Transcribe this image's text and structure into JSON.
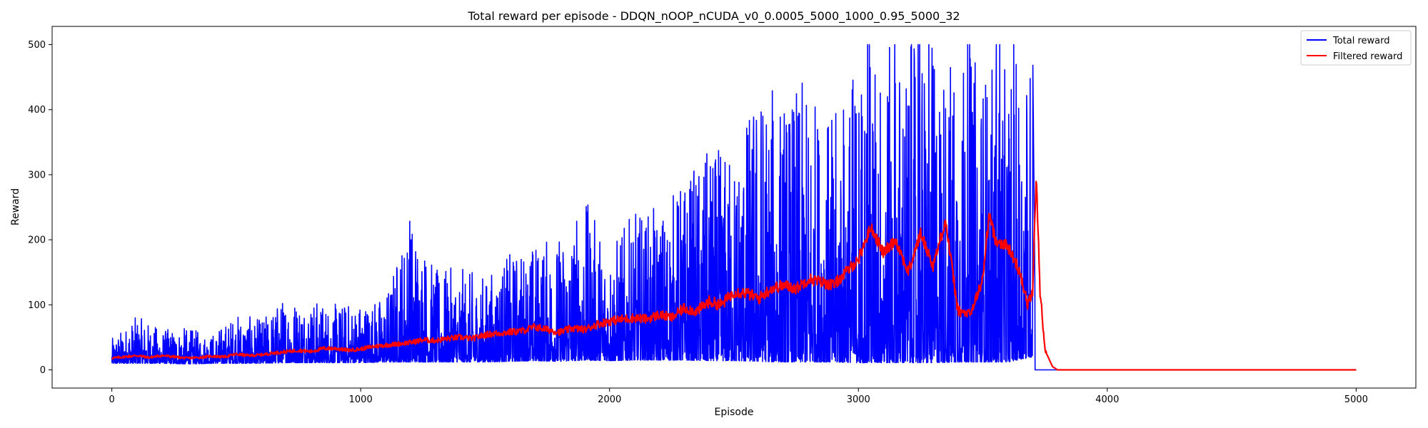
{
  "chart_data": {
    "type": "line",
    "title": "Total reward per episode - DDQN_nOOP_nCUDA_v0_0.0005_5000_1000_0.95_5000_32",
    "xlabel": "Episode",
    "ylabel": "Reward",
    "xlim": [
      -240,
      5240
    ],
    "ylim": [
      -28,
      528
    ],
    "xticks": [
      0,
      1000,
      2000,
      3000,
      4000,
      5000
    ],
    "yticks": [
      0,
      100,
      200,
      300,
      400,
      500
    ],
    "legend_position": "top-right",
    "grid": false,
    "series": [
      {
        "name": "Total reward",
        "color": "#0000ff",
        "style": "noisy raw reward per episode (shown as an envelope of per-bin minimum/maximum)",
        "x": [
          0,
          100,
          200,
          300,
          400,
          500,
          600,
          700,
          800,
          900,
          1000,
          1100,
          1200,
          1300,
          1400,
          1500,
          1600,
          1700,
          1800,
          1900,
          2000,
          2100,
          2200,
          2300,
          2400,
          2500,
          2600,
          2700,
          2800,
          2900,
          3000,
          3100,
          3200,
          3300,
          3400,
          3500,
          3600,
          3700,
          3710,
          3800,
          4000,
          4500,
          5000
        ],
        "min": [
          10,
          10,
          10,
          9,
          10,
          10,
          10,
          11,
          11,
          11,
          11,
          12,
          12,
          12,
          12,
          12,
          13,
          14,
          13,
          15,
          14,
          15,
          15,
          15,
          14,
          14,
          13,
          12,
          12,
          12,
          11,
          11,
          11,
          11,
          12,
          12,
          12,
          20,
          0,
          0,
          0,
          0,
          0
        ],
        "max": [
          48,
          83,
          63,
          65,
          55,
          87,
          78,
          117,
          110,
          102,
          108,
          115,
          255,
          155,
          158,
          145,
          180,
          200,
          210,
          265,
          195,
          243,
          250,
          300,
          340,
          345,
          450,
          430,
          445,
          390,
          500,
          500,
          500,
          500,
          500,
          480,
          460,
          500,
          0,
          0,
          0,
          0,
          0
        ]
      },
      {
        "name": "Filtered reward",
        "color": "#ff0000",
        "style": "smoothed reward",
        "x": [
          0,
          50,
          100,
          150,
          200,
          250,
          300,
          350,
          400,
          450,
          500,
          550,
          600,
          650,
          700,
          750,
          800,
          850,
          900,
          950,
          1000,
          1050,
          1100,
          1150,
          1200,
          1250,
          1300,
          1350,
          1400,
          1450,
          1500,
          1550,
          1600,
          1650,
          1700,
          1750,
          1800,
          1850,
          1900,
          1950,
          2000,
          2050,
          2100,
          2150,
          2200,
          2250,
          2300,
          2350,
          2400,
          2450,
          2500,
          2550,
          2600,
          2650,
          2700,
          2750,
          2800,
          2850,
          2900,
          2950,
          3000,
          3050,
          3100,
          3150,
          3200,
          3250,
          3300,
          3350,
          3400,
          3450,
          3500,
          3525,
          3550,
          3600,
          3650,
          3680,
          3700,
          3715,
          3730,
          3750,
          3780,
          3800,
          3900,
          4000,
          4500,
          5000
        ],
        "values": [
          18,
          20,
          22,
          19,
          22,
          20,
          18,
          19,
          21,
          20,
          24,
          22,
          23,
          26,
          28,
          30,
          28,
          33,
          33,
          30,
          32,
          36,
          38,
          40,
          42,
          46,
          45,
          48,
          50,
          48,
          54,
          56,
          58,
          60,
          66,
          62,
          58,
          64,
          62,
          70,
          75,
          78,
          80,
          78,
          85,
          80,
          95,
          90,
          105,
          100,
          120,
          118,
          110,
          125,
          130,
          125,
          140,
          135,
          130,
          150,
          170,
          220,
          180,
          200,
          150,
          210,
          160,
          230,
          90,
          85,
          140,
          240,
          200,
          190,
          150,
          100,
          120,
          300,
          120,
          30,
          5,
          0,
          0,
          0,
          0,
          0
        ]
      }
    ]
  }
}
